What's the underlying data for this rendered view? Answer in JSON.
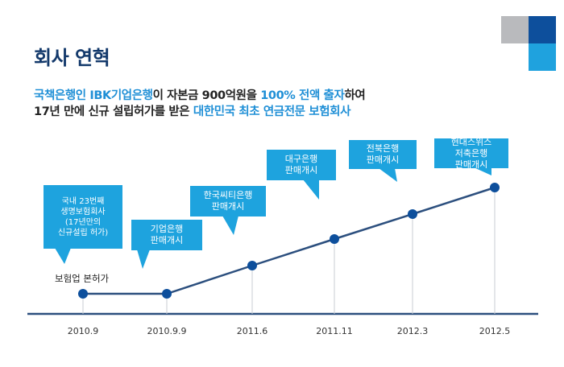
{
  "page_title": "회사 연혁",
  "intro": {
    "line1": [
      {
        "text": "국책은행인 IBK기업은행",
        "highlight": true
      },
      {
        "text": "이  자본금 900억원을 ",
        "highlight": false
      },
      {
        "text": "100% 전액 출자",
        "highlight": true
      },
      {
        "text": "하여",
        "highlight": false
      }
    ],
    "line2": [
      {
        "text": "17년 만에 신규 설립허가를  받은 ",
        "highlight": false
      },
      {
        "text": "대한민국 최초 연금전문 보험회사",
        "highlight": true
      }
    ]
  },
  "colors": {
    "accent": "#1ea3de",
    "navy": "#0d4f9c",
    "line": "#2c4f7e",
    "gray": "#b9babd"
  },
  "timeline": {
    "start_label": "보험업 본허가",
    "events": [
      {
        "date": "2010.9",
        "level": 0,
        "label": "국내 23번째\n생명보험회사\n(17년만의\n신규설립 허가)"
      },
      {
        "date": "2010.9.9",
        "level": 0,
        "label": "기업은행\n판매개시"
      },
      {
        "date": "2011.6",
        "level": 1,
        "label": "한국씨티은행\n판매개시"
      },
      {
        "date": "2011.11",
        "level": 2,
        "label": "대구은행\n판매개시"
      },
      {
        "date": "2012.3",
        "level": 3,
        "label": "전북은행\n판매개시"
      },
      {
        "date": "2012.5",
        "level": 4,
        "label": "현대스위스\n저축은행\n판매개시"
      }
    ]
  }
}
